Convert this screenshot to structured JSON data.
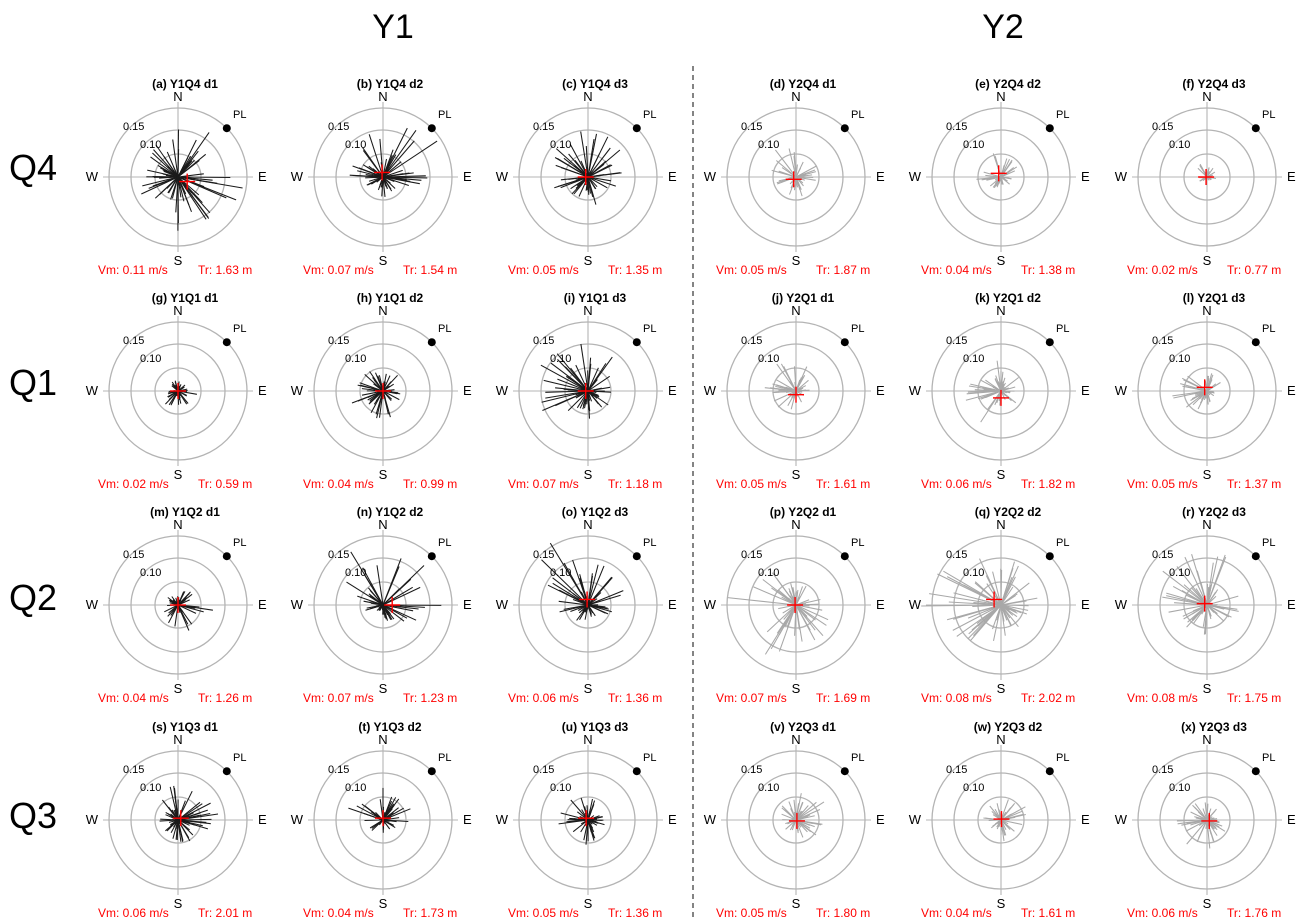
{
  "figure": {
    "column_headers": [
      "Y1",
      "Y2"
    ],
    "row_headers": [
      "Q4",
      "Q1",
      "Q2",
      "Q3"
    ],
    "compass": {
      "n": "N",
      "s": "S",
      "e": "E",
      "w": "W"
    },
    "ring_labels": [
      "0.15",
      "0.10"
    ],
    "pl_label": "PL",
    "colors": {
      "y1_lines": "#1a1a1a",
      "y2_lines": "#a8a8a8",
      "mean_marker": "#ff0000",
      "annotation_text": "#ff0000",
      "rings": "#b4b4b4"
    }
  },
  "chart_data": [
    {
      "type": "polar-stick",
      "title": "(a) Y1Q4 d1",
      "vm": "Vm: 0.11 m/s",
      "tr": "Tr: 1.63 m",
      "year": "Y1",
      "seed": 101,
      "n_lines": 70,
      "spread": 0.115,
      "bias_dir": 110,
      "bias_str": 0.3,
      "mean": [
        0.02,
        -0.01
      ]
    },
    {
      "type": "polar-stick",
      "title": "(b) Y1Q4 d2",
      "vm": "Vm: 0.07 m/s",
      "tr": "Tr: 1.54 m",
      "year": "Y1",
      "seed": 102,
      "n_lines": 60,
      "spread": 0.085,
      "bias_dir": 20,
      "bias_str": 0.5,
      "mean": [
        -0.002,
        0.01
      ]
    },
    {
      "type": "polar-stick",
      "title": "(c) Y1Q4 d3",
      "vm": "Vm: 0.05 m/s",
      "tr": "Tr: 1.35 m",
      "year": "Y1",
      "seed": 103,
      "n_lines": 60,
      "spread": 0.075,
      "bias_dir": 0,
      "bias_str": 0.35,
      "mean": [
        -0.005,
        0.0
      ]
    },
    {
      "type": "polar-stick",
      "title": "(d) Y2Q4 d1",
      "vm": "Vm: 0.05 m/s",
      "tr": "Tr: 1.87 m",
      "year": "Y2",
      "seed": 104,
      "n_lines": 40,
      "spread": 0.055,
      "bias_dir": 330,
      "bias_str": 0.4,
      "mean": [
        -0.005,
        -0.005
      ]
    },
    {
      "type": "polar-stick",
      "title": "(e) Y2Q4 d2",
      "vm": "Vm: 0.04 m/s",
      "tr": "Tr: 1.38 m",
      "year": "Y2",
      "seed": 105,
      "n_lines": 40,
      "spread": 0.04,
      "bias_dir": 330,
      "bias_str": 0.5,
      "mean": [
        -0.005,
        0.008
      ]
    },
    {
      "type": "polar-stick",
      "title": "(f) Y2Q4 d3",
      "vm": "Vm: 0.02 m/s",
      "tr": "Tr: 0.77 m",
      "year": "Y2",
      "seed": 106,
      "n_lines": 30,
      "spread": 0.022,
      "bias_dir": 0,
      "bias_str": 0.2,
      "mean": [
        -0.002,
        0.0
      ]
    },
    {
      "type": "polar-stick",
      "title": "(g) Y1Q1 d1",
      "vm": "Vm: 0.02 m/s",
      "tr": "Tr: 0.59 m",
      "year": "Y1",
      "seed": 107,
      "n_lines": 45,
      "spread": 0.03,
      "bias_dir": 180,
      "bias_str": 0.25,
      "mean": [
        0.0,
        0.0
      ]
    },
    {
      "type": "polar-stick",
      "title": "(h) Y1Q1 d2",
      "vm": "Vm: 0.04 m/s",
      "tr": "Tr: 0.99 m",
      "year": "Y1",
      "seed": 108,
      "n_lines": 55,
      "spread": 0.055,
      "bias_dir": 230,
      "bias_str": 0.35,
      "mean": [
        0.0,
        0.0
      ]
    },
    {
      "type": "polar-stick",
      "title": "(i) Y1Q1 d3",
      "vm": "Vm: 0.07 m/s",
      "tr": "Tr: 1.18 m",
      "year": "Y1",
      "seed": 109,
      "n_lines": 60,
      "spread": 0.085,
      "bias_dir": 320,
      "bias_str": 0.55,
      "mean": [
        -0.005,
        0.0
      ]
    },
    {
      "type": "polar-stick",
      "title": "(j) Y2Q1 d1",
      "vm": "Vm: 0.05 m/s",
      "tr": "Tr: 1.61 m",
      "year": "Y2",
      "seed": 110,
      "n_lines": 45,
      "spread": 0.05,
      "bias_dir": 300,
      "bias_str": 0.4,
      "mean": [
        0.0,
        -0.008
      ]
    },
    {
      "type": "polar-stick",
      "title": "(k) Y2Q1 d2",
      "vm": "Vm: 0.06 m/s",
      "tr": "Tr: 1.82 m",
      "year": "Y2",
      "seed": 111,
      "n_lines": 50,
      "spread": 0.06,
      "bias_dir": 250,
      "bias_str": 0.4,
      "mean": [
        0.0,
        -0.015
      ]
    },
    {
      "type": "polar-stick",
      "title": "(l) Y2Q1 d3",
      "vm": "Vm: 0.05 m/s",
      "tr": "Tr: 1.37 m",
      "year": "Y2",
      "seed": 112,
      "n_lines": 45,
      "spread": 0.045,
      "bias_dir": 280,
      "bias_str": 0.4,
      "mean": [
        -0.005,
        0.008
      ]
    },
    {
      "type": "polar-stick",
      "title": "(m) Y1Q2 d1",
      "vm": "Vm: 0.04 m/s",
      "tr": "Tr: 1.26 m",
      "year": "Y1",
      "seed": 113,
      "n_lines": 50,
      "spread": 0.045,
      "bias_dir": 150,
      "bias_str": 0.45,
      "mean": [
        0.0,
        0.0
      ]
    },
    {
      "type": "polar-stick",
      "title": "(n) Y1Q2 d2",
      "vm": "Vm: 0.07 m/s",
      "tr": "Tr: 1.23 m",
      "year": "Y1",
      "seed": 114,
      "n_lines": 55,
      "spread": 0.075,
      "bias_dir": 30,
      "bias_str": 0.75,
      "mean": [
        0.02,
        0.0
      ]
    },
    {
      "type": "polar-stick",
      "title": "(o) Y1Q2 d3",
      "vm": "Vm: 0.06 m/s",
      "tr": "Tr: 1.36 m",
      "year": "Y1",
      "seed": 115,
      "n_lines": 55,
      "spread": 0.075,
      "bias_dir": 350,
      "bias_str": 0.6,
      "mean": [
        -0.002,
        0.012
      ]
    },
    {
      "type": "polar-stick",
      "title": "(p) Y2Q2 d1",
      "vm": "Vm: 0.07 m/s",
      "tr": "Tr: 1.69 m",
      "year": "Y2",
      "seed": 116,
      "n_lines": 55,
      "spread": 0.09,
      "bias_dir": 220,
      "bias_str": 0.5,
      "mean": [
        -0.002,
        0.0
      ]
    },
    {
      "type": "polar-stick",
      "title": "(q) Y2Q2 d2",
      "vm": "Vm: 0.08 m/s",
      "tr": "Tr: 2.02 m",
      "year": "Y2",
      "seed": 117,
      "n_lines": 65,
      "spread": 0.1,
      "bias_dir": 290,
      "bias_str": 0.35,
      "mean": [
        -0.015,
        0.012
      ]
    },
    {
      "type": "polar-stick",
      "title": "(r) Y2Q2 d3",
      "vm": "Vm: 0.08 m/s",
      "tr": "Tr: 1.75 m",
      "year": "Y2",
      "seed": 118,
      "n_lines": 60,
      "spread": 0.09,
      "bias_dir": 340,
      "bias_str": 0.4,
      "mean": [
        -0.005,
        0.003
      ]
    },
    {
      "type": "polar-stick",
      "title": "(s) Y1Q3 d1",
      "vm": "Vm: 0.06 m/s",
      "tr": "Tr: 2.01 m",
      "year": "Y1",
      "seed": 119,
      "n_lines": 60,
      "spread": 0.065,
      "bias_dir": 55,
      "bias_str": 0.45,
      "mean": [
        0.006,
        0.004
      ]
    },
    {
      "type": "polar-stick",
      "title": "(t) Y1Q3 d2",
      "vm": "Vm: 0.04 m/s",
      "tr": "Tr: 1.73 m",
      "year": "Y1",
      "seed": 120,
      "n_lines": 50,
      "spread": 0.05,
      "bias_dir": 340,
      "bias_str": 0.45,
      "mean": [
        0.0,
        0.004
      ]
    },
    {
      "type": "polar-stick",
      "title": "(u) Y1Q3 d3",
      "vm": "Vm: 0.05 m/s",
      "tr": "Tr: 1.36 m",
      "year": "Y1",
      "seed": 121,
      "n_lines": 55,
      "spread": 0.055,
      "bias_dir": 270,
      "bias_str": 0.25,
      "mean": [
        -0.004,
        0.004
      ]
    },
    {
      "type": "polar-stick",
      "title": "(v) Y2Q3 d1",
      "vm": "Vm: 0.05 m/s",
      "tr": "Tr: 1.80 m",
      "year": "Y2",
      "seed": 122,
      "n_lines": 45,
      "spread": 0.055,
      "bias_dir": 80,
      "bias_str": 0.35,
      "mean": [
        0.002,
        -0.002
      ]
    },
    {
      "type": "polar-stick",
      "title": "(w) Y2Q3 d2",
      "vm": "Vm: 0.04 m/s",
      "tr": "Tr: 1.61 m",
      "year": "Y2",
      "seed": 123,
      "n_lines": 45,
      "spread": 0.045,
      "bias_dir": 90,
      "bias_str": 0.35,
      "mean": [
        0.001,
        0.002
      ]
    },
    {
      "type": "polar-stick",
      "title": "(x) Y2Q3 d3",
      "vm": "Vm: 0.06 m/s",
      "tr": "Tr: 1.76 m",
      "year": "Y2",
      "seed": 124,
      "n_lines": 50,
      "spread": 0.055,
      "bias_dir": 230,
      "bias_str": 0.35,
      "mean": [
        0.005,
        -0.002
      ]
    }
  ]
}
